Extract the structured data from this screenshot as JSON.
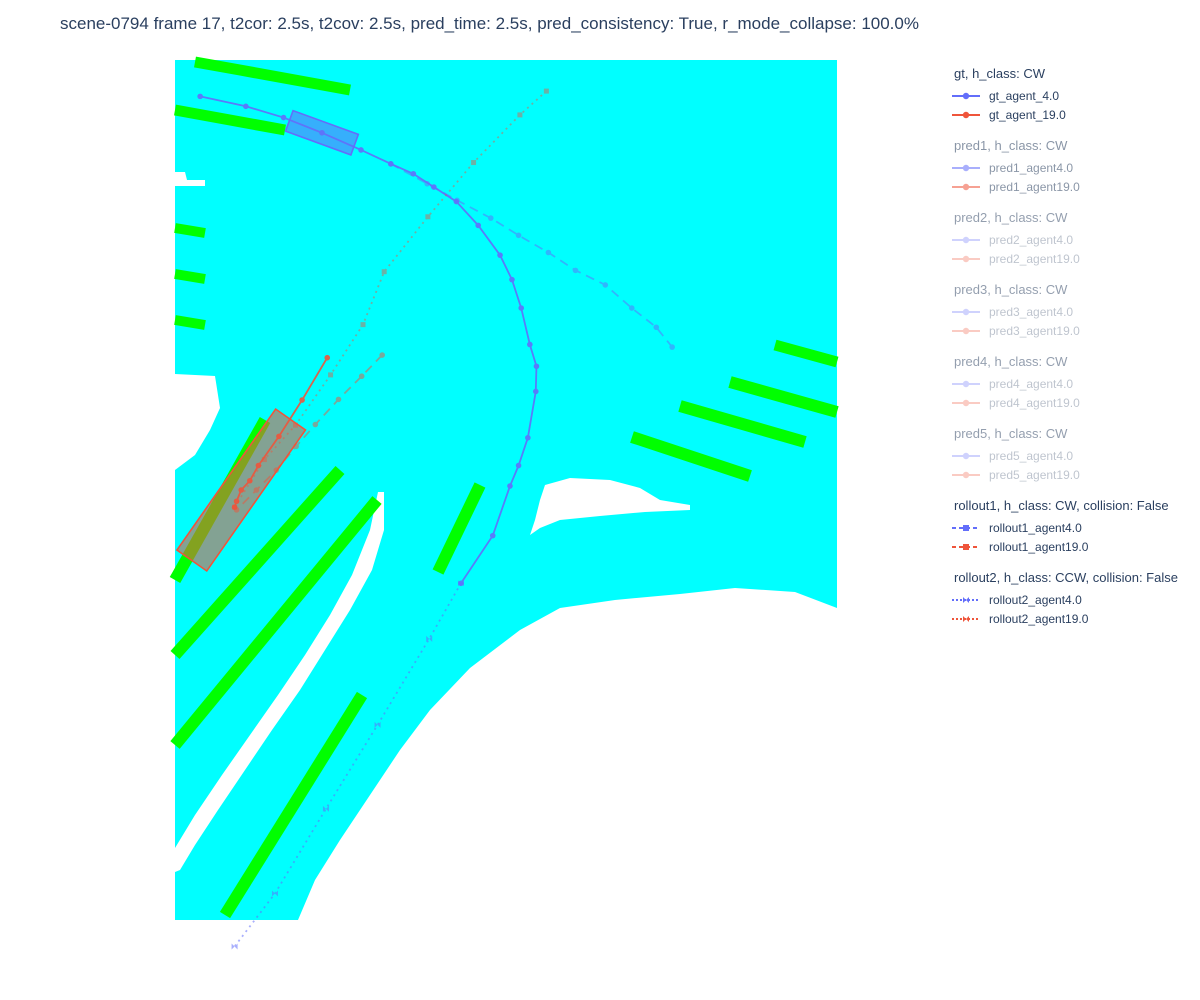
{
  "title": "scene-0794 frame 17, t2cor: 2.5s, t2cov: 2.5s, pred_time: 2.5s, pred_consistency: True, r_mode_collapse: 100.0%",
  "colors": {
    "drivable": "#00ffff",
    "lane_divider": "#00ff00",
    "agent4": "#636efa",
    "agent19": "#ef553b"
  },
  "legend_groups": [
    {
      "title": "gt, h_class: CW",
      "opacity": 1.0,
      "entries": [
        {
          "label": "gt_agent_4.0",
          "color": "#636efa",
          "dash": "solid",
          "marker": "circle"
        },
        {
          "label": "gt_agent_19.0",
          "color": "#ef553b",
          "dash": "solid",
          "marker": "circle"
        }
      ]
    },
    {
      "title": "pred1, h_class: CW",
      "opacity": 0.55,
      "entries": [
        {
          "label": "pred1_agent4.0",
          "color": "#636efa",
          "dash": "solid",
          "marker": "circle"
        },
        {
          "label": "pred1_agent19.0",
          "color": "#ef553b",
          "dash": "solid",
          "marker": "circle"
        }
      ]
    },
    {
      "title": "pred2, h_class: CW",
      "opacity": 0.3,
      "entries": [
        {
          "label": "pred2_agent4.0",
          "color": "#636efa",
          "dash": "solid",
          "marker": "circle"
        },
        {
          "label": "pred2_agent19.0",
          "color": "#ef553b",
          "dash": "solid",
          "marker": "circle"
        }
      ]
    },
    {
      "title": "pred3, h_class: CW",
      "opacity": 0.3,
      "entries": [
        {
          "label": "pred3_agent4.0",
          "color": "#636efa",
          "dash": "solid",
          "marker": "circle"
        },
        {
          "label": "pred3_agent19.0",
          "color": "#ef553b",
          "dash": "solid",
          "marker": "circle"
        }
      ]
    },
    {
      "title": "pred4, h_class: CW",
      "opacity": 0.3,
      "entries": [
        {
          "label": "pred4_agent4.0",
          "color": "#636efa",
          "dash": "solid",
          "marker": "circle"
        },
        {
          "label": "pred4_agent19.0",
          "color": "#ef553b",
          "dash": "solid",
          "marker": "circle"
        }
      ]
    },
    {
      "title": "pred5, h_class: CW",
      "opacity": 0.3,
      "entries": [
        {
          "label": "pred5_agent4.0",
          "color": "#636efa",
          "dash": "solid",
          "marker": "circle"
        },
        {
          "label": "pred5_agent19.0",
          "color": "#ef553b",
          "dash": "solid",
          "marker": "circle"
        }
      ]
    },
    {
      "title": "rollout1, h_class: CW, collision: False",
      "opacity": 1.0,
      "entries": [
        {
          "label": "rollout1_agent4.0",
          "color": "#636efa",
          "dash": "dash",
          "marker": "square"
        },
        {
          "label": "rollout1_agent19.0",
          "color": "#ef553b",
          "dash": "dash",
          "marker": "square"
        }
      ]
    },
    {
      "title": "rollout2, h_class: CCW, collision: False",
      "opacity": 1.0,
      "entries": [
        {
          "label": "rollout2_agent4.0",
          "color": "#636efa",
          "dash": "dot",
          "marker": "bowtie"
        },
        {
          "label": "rollout2_agent19.0",
          "color": "#ef553b",
          "dash": "dot",
          "marker": "bowtie"
        }
      ]
    }
  ],
  "chart_data": {
    "type": "scatter",
    "title": "scene-0794 frame 17, t2cor: 2.5s, t2cov: 2.5s, pred_time: 2.5s, pred_consistency: True, r_mode_collapse: 100.0%",
    "xlim": [
      0,
      100
    ],
    "ylim": [
      0,
      130
    ],
    "grid": false,
    "legend_placement": "right",
    "background_map": {
      "drivable_area_color": "#00ffff",
      "lane_divider_color": "#00ff00"
    },
    "series": [
      {
        "name": "gt_agent_4.0",
        "color": "#636efa",
        "dash": "solid",
        "marker": "circle",
        "opacity": 0.9,
        "x": [
          3.8,
          10.7,
          16.4,
          22.2,
          28.1,
          32.6,
          36.0,
          39.1,
          42.5,
          45.8,
          49.1,
          50.9,
          52.3,
          53.6,
          54.6,
          54.5,
          53.3,
          51.9,
          50.6,
          48.0,
          43.2
        ],
        "y": [
          124.5,
          123.0,
          121.3,
          119.0,
          116.4,
          114.3,
          112.8,
          110.8,
          108.6,
          105.0,
          100.5,
          96.8,
          92.5,
          87.0,
          83.7,
          79.9,
          72.9,
          68.7,
          65.6,
          58.1,
          50.9
        ]
      },
      {
        "name": "gt_agent_19.0",
        "color": "#ef553b",
        "dash": "solid",
        "marker": "circle",
        "opacity": 0.9,
        "x": [
          23.0,
          19.2,
          15.7,
          12.6,
          11.3,
          10.0,
          9.3,
          9.0
        ],
        "y": [
          85.0,
          78.6,
          73.1,
          68.7,
          66.4,
          65.0,
          63.3,
          62.4
        ]
      },
      {
        "name": "pred1_agent4.0",
        "color": "#636efa",
        "dash": "dash",
        "marker": "circle",
        "opacity": 0.5,
        "x": [
          32.6,
          38.1,
          42.6,
          47.7,
          51.9,
          56.4,
          60.5,
          65.0,
          69.0,
          72.7,
          75.1
        ],
        "y": [
          114.3,
          111.3,
          108.8,
          106.1,
          103.5,
          100.9,
          98.2,
          96.0,
          92.5,
          89.6,
          86.6
        ]
      },
      {
        "name": "pred1_agent19.0",
        "color": "#ef553b",
        "dash": "dash",
        "marker": "circle",
        "opacity": 0.5,
        "x": [
          31.3,
          28.2,
          24.7,
          21.2,
          18.3,
          15.3,
          12.3,
          9.3
        ],
        "y": [
          85.4,
          82.2,
          78.7,
          74.9,
          71.6,
          68.0,
          65.0,
          62.0
        ]
      },
      {
        "name": "rollout1_agent19.0",
        "color": "#ef553b",
        "dash": "dot",
        "marker": "square",
        "opacity": 0.45,
        "x": [
          9.0,
          13.5,
          18.2,
          23.5,
          28.4,
          31.6,
          38.2,
          45.1,
          52.1,
          56.1
        ],
        "y": [
          62.4,
          69.6,
          74.8,
          82.4,
          90.0,
          98.0,
          106.3,
          114.5,
          121.7,
          125.3
        ]
      },
      {
        "name": "rollout2_agent4.0",
        "color": "#636efa",
        "dash": "dot",
        "marker": "bowtie",
        "opacity": 0.55,
        "x": [
          43.2,
          38.4,
          30.6,
          22.8,
          15.1,
          9.0
        ],
        "y": [
          50.9,
          42.5,
          29.5,
          16.8,
          4.0,
          -4.0
        ]
      }
    ],
    "agent_boxes": [
      {
        "agent": "agent_4.0",
        "color": "#636efa",
        "center": [
          22.2,
          119.0
        ],
        "length": 10.5,
        "width": 3.3,
        "heading_deg": -20
      },
      {
        "agent": "agent_19.0",
        "color": "#ef553b",
        "center": [
          10.0,
          65.0
        ],
        "length": 26.0,
        "width": 5.5,
        "heading_deg": 55
      }
    ]
  }
}
